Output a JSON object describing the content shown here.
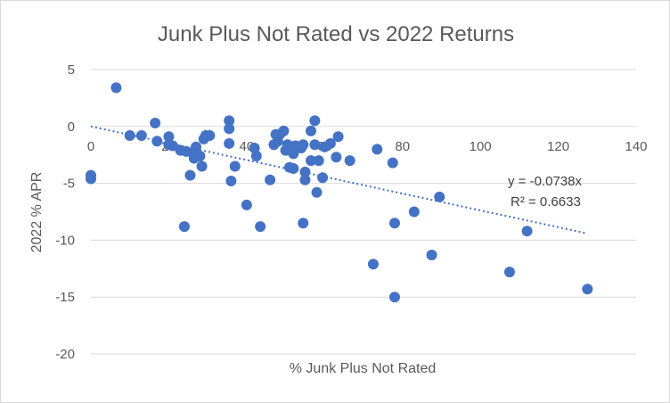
{
  "chart_data": {
    "type": "scatter",
    "title": "Junk Plus Not Rated vs 2022 Returns",
    "xlabel": "% Junk Plus Not Rated",
    "ylabel": "2022 % APR",
    "xlim": [
      0,
      140
    ],
    "ylim": [
      -20,
      5
    ],
    "x_ticks": [
      0,
      20,
      40,
      60,
      80,
      100,
      120,
      140
    ],
    "y_ticks": [
      5,
      0,
      -5,
      -10,
      -15,
      -20
    ],
    "grid": "horizontal",
    "legend": "none",
    "point_color": "#4472c4",
    "trendline": {
      "type": "linear-through-origin",
      "slope": -0.0738,
      "x_range": [
        0,
        127
      ],
      "style": "dotted",
      "color": "#4472c4",
      "equation_label": "y = -0.0738x",
      "r2_label": "R² = 0.6633"
    },
    "points": [
      {
        "x": 0,
        "y": -4.3
      },
      {
        "x": 0,
        "y": -4.6
      },
      {
        "x": 6.5,
        "y": 3.4
      },
      {
        "x": 10,
        "y": -0.8
      },
      {
        "x": 13,
        "y": -0.8
      },
      {
        "x": 16.5,
        "y": 0.3
      },
      {
        "x": 17,
        "y": -1.3
      },
      {
        "x": 20,
        "y": -0.9
      },
      {
        "x": 20,
        "y": -1.6
      },
      {
        "x": 21,
        "y": -1.7
      },
      {
        "x": 23,
        "y": -2.1
      },
      {
        "x": 24,
        "y": -8.8
      },
      {
        "x": 24.5,
        "y": -2.2
      },
      {
        "x": 25.5,
        "y": -4.3
      },
      {
        "x": 26,
        "y": -2.3
      },
      {
        "x": 26.5,
        "y": -2.8
      },
      {
        "x": 27,
        "y": -1.8
      },
      {
        "x": 27,
        "y": -2.5
      },
      {
        "x": 28,
        "y": -2.6
      },
      {
        "x": 28.5,
        "y": -3.5
      },
      {
        "x": 29,
        "y": -1.1
      },
      {
        "x": 29.5,
        "y": -0.8
      },
      {
        "x": 30.5,
        "y": -0.8
      },
      {
        "x": 35.5,
        "y": 0.5
      },
      {
        "x": 35.5,
        "y": -0.2
      },
      {
        "x": 35.5,
        "y": -1.5
      },
      {
        "x": 36,
        "y": -4.8
      },
      {
        "x": 37,
        "y": -3.5
      },
      {
        "x": 40,
        "y": -6.9
      },
      {
        "x": 42,
        "y": -1.9
      },
      {
        "x": 42.5,
        "y": -2.6
      },
      {
        "x": 43.5,
        "y": -8.8
      },
      {
        "x": 46,
        "y": -4.7
      },
      {
        "x": 47,
        "y": -1.6
      },
      {
        "x": 47.5,
        "y": -0.7
      },
      {
        "x": 48,
        "y": -1.3
      },
      {
        "x": 48.5,
        "y": -0.7
      },
      {
        "x": 49.5,
        "y": -0.4
      },
      {
        "x": 50,
        "y": -2.1
      },
      {
        "x": 50.5,
        "y": -1.6
      },
      {
        "x": 51,
        "y": -3.6
      },
      {
        "x": 51.5,
        "y": -1.9
      },
      {
        "x": 52,
        "y": -2.4
      },
      {
        "x": 52,
        "y": -3.7
      },
      {
        "x": 52.5,
        "y": -1.7
      },
      {
        "x": 54,
        "y": -1.9
      },
      {
        "x": 54.5,
        "y": -1.6
      },
      {
        "x": 54.5,
        "y": -8.5
      },
      {
        "x": 55,
        "y": -4.0
      },
      {
        "x": 55,
        "y": -4.7
      },
      {
        "x": 56.5,
        "y": -0.4
      },
      {
        "x": 56.5,
        "y": -3.0
      },
      {
        "x": 57.5,
        "y": 0.5
      },
      {
        "x": 57.5,
        "y": -1.6
      },
      {
        "x": 58,
        "y": -5.8
      },
      {
        "x": 58.5,
        "y": -3.0
      },
      {
        "x": 59.5,
        "y": -4.5
      },
      {
        "x": 60,
        "y": -1.8
      },
      {
        "x": 61.5,
        "y": -1.5
      },
      {
        "x": 63,
        "y": -2.7
      },
      {
        "x": 63.5,
        "y": -0.9
      },
      {
        "x": 66.5,
        "y": -3.0
      },
      {
        "x": 72.5,
        "y": -12.1
      },
      {
        "x": 73.5,
        "y": -2.0
      },
      {
        "x": 77.5,
        "y": -3.2
      },
      {
        "x": 78,
        "y": -8.5
      },
      {
        "x": 78,
        "y": -15.0
      },
      {
        "x": 83,
        "y": -7.5
      },
      {
        "x": 87.5,
        "y": -11.3
      },
      {
        "x": 89.5,
        "y": -6.2
      },
      {
        "x": 107.5,
        "y": -12.8
      },
      {
        "x": 112,
        "y": -9.2
      },
      {
        "x": 127.5,
        "y": -14.3
      }
    ]
  }
}
